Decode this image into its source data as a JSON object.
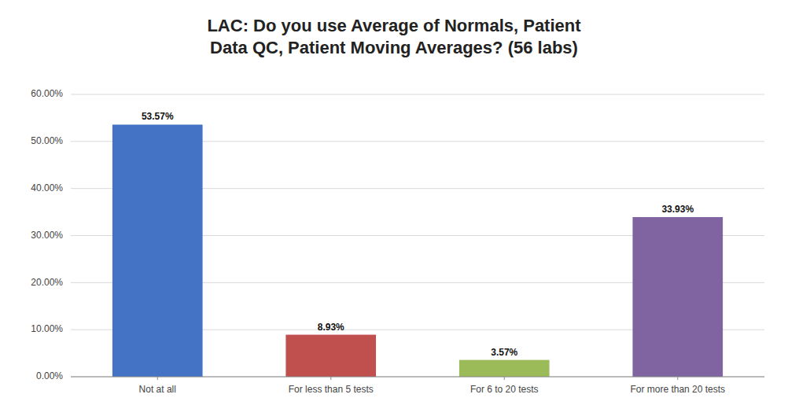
{
  "chart_data": {
    "type": "bar",
    "title": "LAC: Do you use Average of Normals, Patient\nData QC, Patient Moving Averages? (56 labs)",
    "categories": [
      "Not at all",
      "For less than 5 tests",
      "For 6 to 20 tests",
      "For more than 20 tests"
    ],
    "values": [
      53.57,
      8.93,
      3.57,
      33.93
    ],
    "value_labels": [
      "53.57%",
      "8.93%",
      "3.57%",
      "33.93%"
    ],
    "colors": [
      "#4472C4",
      "#C0504D",
      "#9BBB59",
      "#8064A2"
    ],
    "ylim": [
      0,
      60
    ],
    "yticks": [
      {
        "value": 0,
        "label": "0.00%"
      },
      {
        "value": 10,
        "label": "10.00%"
      },
      {
        "value": 20,
        "label": "20.00%"
      },
      {
        "value": 30,
        "label": "30.00%"
      },
      {
        "value": 40,
        "label": "40.00%"
      },
      {
        "value": 50,
        "label": "50.00%"
      },
      {
        "value": 60,
        "label": "60.00%"
      }
    ],
    "grid": true,
    "data_labels": true
  }
}
